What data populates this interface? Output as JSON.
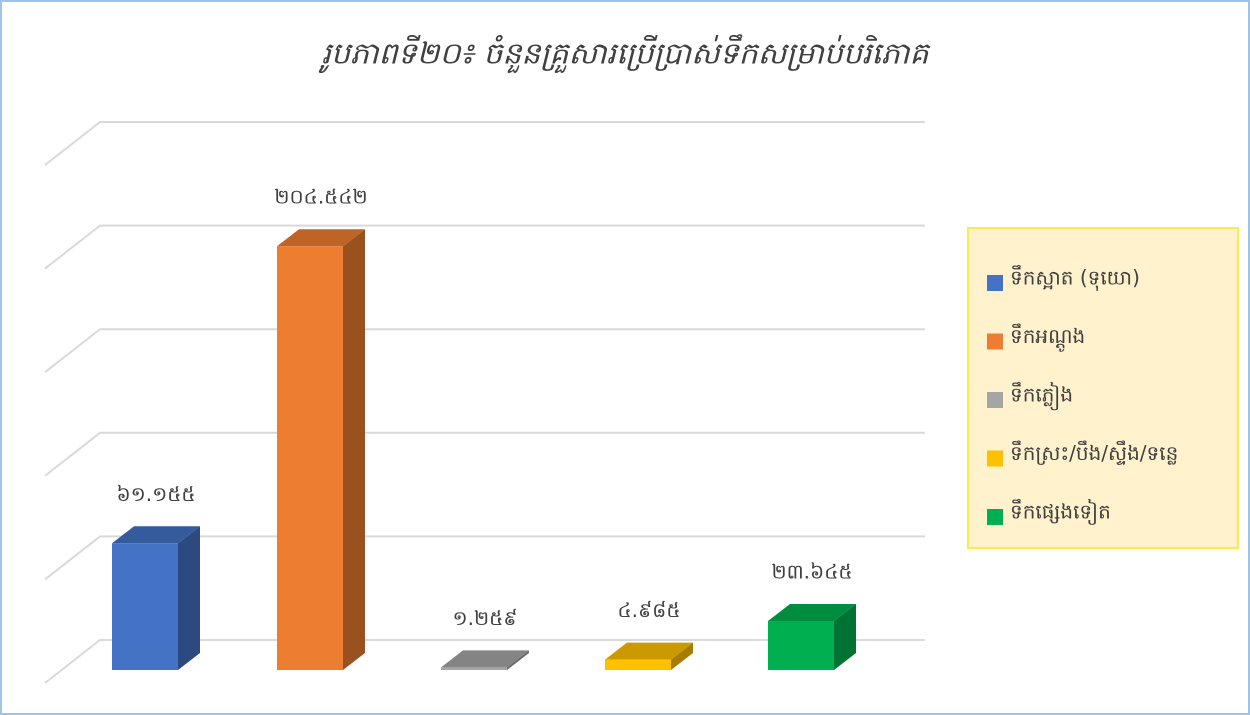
{
  "chart_data": {
    "type": "bar3d",
    "title": "រូបភាពទី២០៖ ចំនួនគ្រួសារប្រើប្រាស់ទឹកសម្រាប់បរិភោគ",
    "categories": [
      "ទឹកស្អាត (ទុយោ)",
      "ទឹកអណ្តូង",
      "ទឹកភ្លៀង",
      "ទឹកស្រះ/បឹង/ស្ទឹង/ទន្លេ",
      "ទឹកផ្សេងទៀត"
    ],
    "values": [
      61155,
      204542,
      1259,
      4985,
      23645
    ],
    "value_labels": [
      "៦១.១៥៥",
      "២០៤.៥៤២",
      "១.២៥៩",
      "៤.៩៨៥",
      "២៣.៦៤៥"
    ],
    "colors": [
      "#4472c4",
      "#ed7d31",
      "#a5a5a5",
      "#ffc000",
      "#00b050"
    ],
    "ylim": [
      0,
      250000
    ],
    "yticks": [
      0,
      50000,
      100000,
      150000,
      200000,
      250000
    ],
    "grid": true,
    "legend": "right"
  }
}
